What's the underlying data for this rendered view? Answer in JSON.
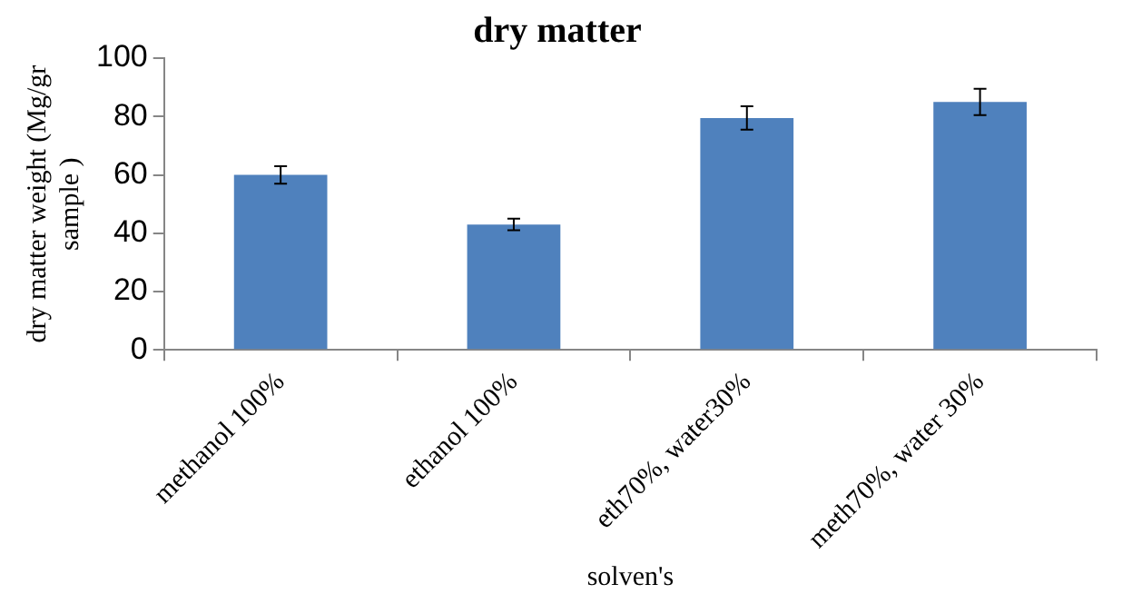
{
  "chart_data": {
    "type": "bar",
    "title": "dry matter",
    "xlabel": "solven's",
    "ylabel": "dry matter weight (Mg/gr sample )",
    "categories": [
      "methanol 100%",
      "ethanol 100%",
      "eth70%, water30%",
      "meth70%, water 30%"
    ],
    "values": [
      60,
      43,
      79.5,
      85
    ],
    "errors": [
      3,
      2,
      4,
      4.5
    ],
    "color": "#4f81bd",
    "ylim": [
      0,
      100
    ],
    "yticks": [
      0,
      20,
      40,
      60,
      80,
      100
    ],
    "grid": false,
    "legend": false
  }
}
